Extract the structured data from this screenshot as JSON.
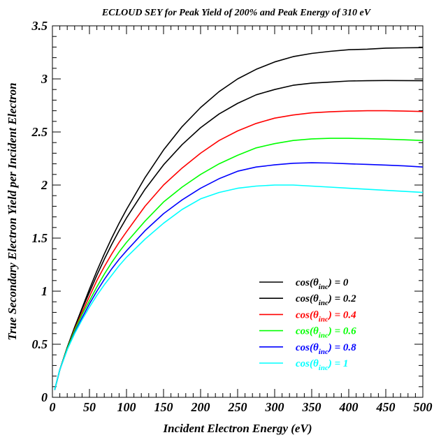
{
  "chart_data": {
    "type": "line",
    "title": "ECLOUD SEY for Peak Yield of 200% and Peak Energy of 310 eV",
    "xlabel": "Incident Electron Energy (eV)",
    "ylabel": "True Secondary Electron Yield per Incident Electron",
    "xlim": [
      0,
      500
    ],
    "ylim": [
      0,
      3.5
    ],
    "x_ticks": [
      "0",
      "50",
      "100",
      "150",
      "200",
      "250",
      "300",
      "350",
      "400",
      "450",
      "500"
    ],
    "y_ticks": [
      "0",
      "0.5",
      "1",
      "1.5",
      "2",
      "2.5",
      "3",
      "3.5"
    ],
    "grid": false,
    "legend_position": "lower-right",
    "x": [
      3,
      10,
      20,
      30,
      40,
      50,
      60,
      70,
      80,
      90,
      100,
      125,
      150,
      175,
      200,
      225,
      250,
      275,
      300,
      325,
      350,
      375,
      400,
      425,
      450,
      475,
      500
    ],
    "series": [
      {
        "legend": {
          "prefix": "cos(θ",
          "sub": "inc",
          "suffix": ") = 0"
        },
        "color": "#000000",
        "values": [
          0.07,
          0.26,
          0.47,
          0.66,
          0.84,
          1.02,
          1.19,
          1.35,
          1.5,
          1.64,
          1.77,
          2.07,
          2.33,
          2.55,
          2.73,
          2.88,
          3.0,
          3.09,
          3.16,
          3.21,
          3.24,
          3.26,
          3.275,
          3.28,
          3.29,
          3.293,
          3.295
        ]
      },
      {
        "legend": {
          "prefix": "cos(θ",
          "sub": "inc",
          "suffix": ") = 0.2"
        },
        "color": "#000000",
        "values": [
          0.07,
          0.26,
          0.47,
          0.66,
          0.83,
          0.99,
          1.15,
          1.3,
          1.44,
          1.57,
          1.69,
          1.96,
          2.19,
          2.38,
          2.54,
          2.67,
          2.77,
          2.85,
          2.9,
          2.94,
          2.96,
          2.97,
          2.98,
          2.983,
          2.985,
          2.984,
          2.983
        ]
      },
      {
        "legend": {
          "prefix": "cos(θ",
          "sub": "inc",
          "suffix": ") = 0.4"
        },
        "color": "#ff0000",
        "values": [
          0.07,
          0.26,
          0.46,
          0.64,
          0.8,
          0.95,
          1.1,
          1.23,
          1.35,
          1.46,
          1.56,
          1.8,
          2.0,
          2.16,
          2.3,
          2.42,
          2.51,
          2.58,
          2.63,
          2.66,
          2.68,
          2.69,
          2.697,
          2.7,
          2.7,
          2.697,
          2.693
        ]
      },
      {
        "legend": {
          "prefix": "cos(θ",
          "sub": "inc",
          "suffix": ") = 0.6"
        },
        "color": "#00ff00",
        "values": [
          0.07,
          0.26,
          0.46,
          0.63,
          0.78,
          0.91,
          1.04,
          1.16,
          1.27,
          1.37,
          1.46,
          1.66,
          1.84,
          1.98,
          2.1,
          2.2,
          2.28,
          2.35,
          2.39,
          2.42,
          2.435,
          2.44,
          2.44,
          2.437,
          2.432,
          2.426,
          2.42
        ]
      },
      {
        "legend": {
          "prefix": "cos(θ",
          "sub": "inc",
          "suffix": ") = 0.8"
        },
        "color": "#0000ff",
        "values": [
          0.07,
          0.26,
          0.45,
          0.61,
          0.75,
          0.88,
          1.0,
          1.11,
          1.21,
          1.3,
          1.38,
          1.57,
          1.73,
          1.86,
          1.97,
          2.06,
          2.13,
          2.17,
          2.19,
          2.205,
          2.21,
          2.207,
          2.2,
          2.195,
          2.188,
          2.18,
          2.17
        ]
      },
      {
        "legend": {
          "prefix": "cos(θ",
          "sub": "inc",
          "suffix": ") = 1"
        },
        "color": "#00ffff",
        "values": [
          0.07,
          0.26,
          0.45,
          0.6,
          0.73,
          0.85,
          0.96,
          1.06,
          1.15,
          1.24,
          1.32,
          1.49,
          1.64,
          1.77,
          1.87,
          1.93,
          1.97,
          1.99,
          2.0,
          2.0,
          1.99,
          1.98,
          1.97,
          1.96,
          1.95,
          1.94,
          1.93
        ]
      }
    ]
  }
}
